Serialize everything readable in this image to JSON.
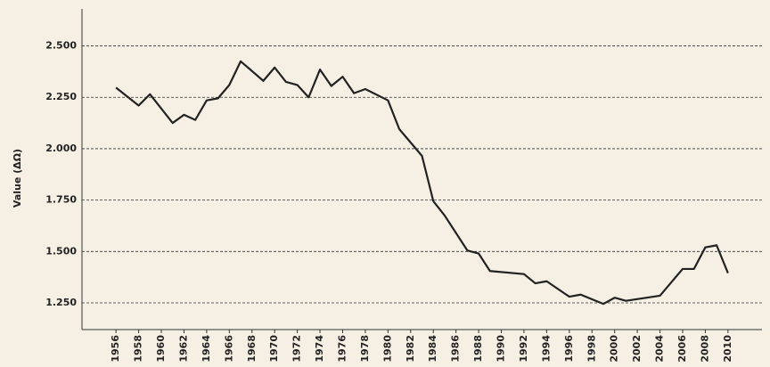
{
  "chart_data": {
    "type": "line",
    "ylabel": "Value (ΔΩ)",
    "x": [
      1956,
      1958,
      1959,
      1961,
      1962,
      1963,
      1964,
      1965,
      1966,
      1967,
      1969,
      1970,
      1971,
      1972,
      1973,
      1974,
      1975,
      1976,
      1977,
      1978,
      1980,
      1981,
      1983,
      1984,
      1985,
      1987,
      1988,
      1989,
      1992,
      1993,
      1994,
      1996,
      1997,
      1999,
      2000,
      2001,
      2004,
      2006,
      2007,
      2008,
      2009,
      2010
    ],
    "series": [
      {
        "name": "Value",
        "color": "#222222",
        "values": [
          2.297,
          2.21,
          2.265,
          2.125,
          2.165,
          2.14,
          2.235,
          2.245,
          2.31,
          2.425,
          2.33,
          2.395,
          2.325,
          2.31,
          2.25,
          2.385,
          2.305,
          2.35,
          2.27,
          2.29,
          2.235,
          2.095,
          1.965,
          1.745,
          1.675,
          1.505,
          1.49,
          1.405,
          1.39,
          1.345,
          1.355,
          1.28,
          1.29,
          1.245,
          1.275,
          1.26,
          1.285,
          1.415,
          1.415,
          1.52,
          1.53,
          1.395
        ]
      }
    ],
    "xlim": [
      1953,
      2013
    ],
    "xticks": [
      1956,
      1958,
      1960,
      1962,
      1964,
      1966,
      1968,
      1970,
      1972,
      1974,
      1976,
      1978,
      1980,
      1982,
      1984,
      1986,
      1988,
      1990,
      1992,
      1994,
      1996,
      1998,
      2000,
      2002,
      2004,
      2006,
      2008,
      2010
    ],
    "ylim": [
      1.12,
      2.68
    ],
    "yticks": [
      {
        "value": 1.25,
        "label": "1.250"
      },
      {
        "value": 1.5,
        "label": "1.500"
      },
      {
        "value": 1.75,
        "label": "1.750"
      },
      {
        "value": 2.0,
        "label": "2.000"
      },
      {
        "value": 2.25,
        "label": "2.250"
      },
      {
        "value": 2.5,
        "label": "2.500"
      }
    ],
    "grid": true
  }
}
